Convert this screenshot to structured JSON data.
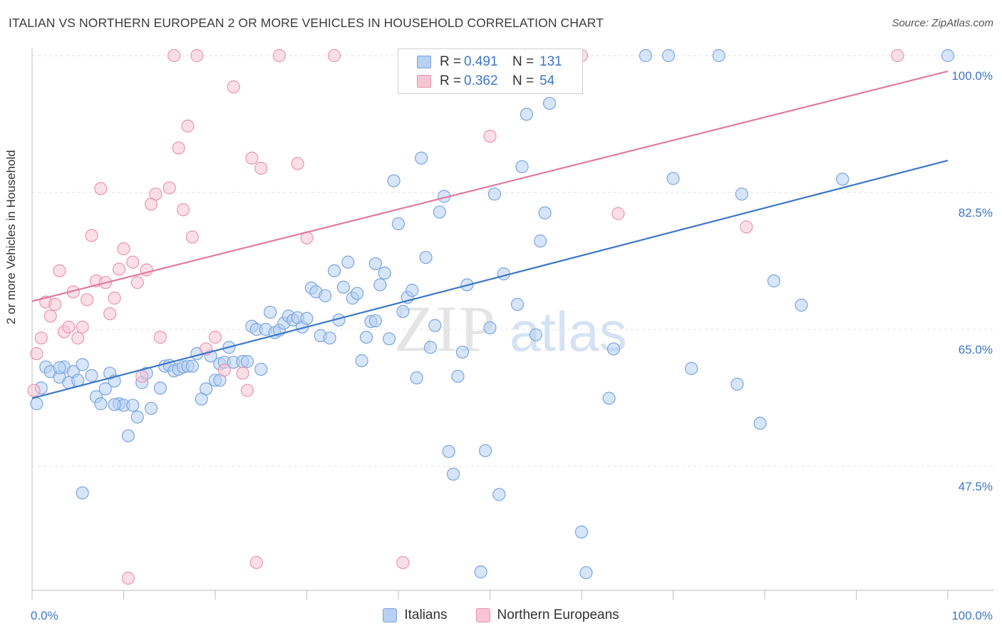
{
  "title": "ITALIAN VS NORTHERN EUROPEAN 2 OR MORE VEHICLES IN HOUSEHOLD CORRELATION CHART",
  "source": "Source: ZipAtlas.com",
  "watermark": {
    "zip": "ZIP",
    "atlas": "atlas"
  },
  "legend": {
    "rows": [
      {
        "r_label": "R =",
        "r_value": "0.491",
        "n_label": "N =",
        "n_value": "131",
        "fill": "#b7d0f3",
        "stroke": "#7aa5e0"
      },
      {
        "r_label": "R =",
        "r_value": "0.362",
        "n_label": "N =",
        "n_value": "54",
        "fill": "#f7c5d3",
        "stroke": "#e995b0"
      }
    ],
    "bottom": [
      {
        "label": "Italians",
        "fill": "#b7d0f3",
        "stroke": "#7aa5e0"
      },
      {
        "label": "Northern Europeans",
        "fill": "#f7c5d3",
        "stroke": "#e995b0"
      }
    ]
  },
  "chart_data": {
    "type": "scatter",
    "title": "ITALIAN VS NORTHERN EUROPEAN 2 OR MORE VEHICLES IN HOUSEHOLD CORRELATION CHART",
    "xlabel": "",
    "ylabel": "2 or more Vehicles in Household",
    "xlim": [
      0,
      100
    ],
    "ylim": [
      32,
      104
    ],
    "x_tick_labels": [
      "0.0%",
      "100.0%"
    ],
    "y_ticks": [
      47.5,
      65.0,
      82.5,
      100.0
    ],
    "y_tick_labels": [
      "47.5%",
      "65.0%",
      "82.5%",
      "100.0%"
    ],
    "grid": true,
    "legend_position": "top-center",
    "colors": {
      "italians": "#3d76c8",
      "northern": "#e07aa0",
      "axis_text": "#3d76c8"
    },
    "series": [
      {
        "name": "Italians",
        "color": "#3d76c8",
        "trend": [
          [
            0,
            56.2
          ],
          [
            100,
            86.6
          ]
        ],
        "points": [
          [
            0.5,
            55.5
          ],
          [
            1,
            57.5
          ],
          [
            1.5,
            60.2
          ],
          [
            2,
            59.6
          ],
          [
            3,
            58.9
          ],
          [
            3.5,
            60.2
          ],
          [
            4,
            58.2
          ],
          [
            4.5,
            59.6
          ],
          [
            5,
            58.5
          ],
          [
            5.5,
            60.5
          ],
          [
            6.5,
            59.1
          ],
          [
            7,
            56.4
          ],
          [
            7.5,
            55.5
          ],
          [
            8,
            57.4
          ],
          [
            8.5,
            59.4
          ],
          [
            9,
            58.4
          ],
          [
            9.5,
            55.5
          ],
          [
            10,
            55.3
          ],
          [
            10.5,
            51.4
          ],
          [
            11,
            55.3
          ],
          [
            11.5,
            53.8
          ],
          [
            12,
            58.2
          ],
          [
            12.5,
            59.4
          ],
          [
            13,
            54.9
          ],
          [
            14,
            57.5
          ],
          [
            14.5,
            60.3
          ],
          [
            15,
            60.4
          ],
          [
            15.5,
            59.7
          ],
          [
            16,
            59.9
          ],
          [
            16.5,
            60.2
          ],
          [
            17,
            60.3
          ],
          [
            17.5,
            60.3
          ],
          [
            18,
            61.9
          ],
          [
            18.5,
            56.1
          ],
          [
            19,
            57.4
          ],
          [
            19.5,
            61.6
          ],
          [
            20,
            58.5
          ],
          [
            20.5,
            60.6
          ],
          [
            21,
            60.8
          ],
          [
            21.5,
            62.7
          ],
          [
            22,
            60.8
          ],
          [
            23,
            60.9
          ],
          [
            23.5,
            60.9
          ],
          [
            24,
            65.4
          ],
          [
            24.5,
            65.0
          ],
          [
            25,
            59.9
          ],
          [
            25.5,
            65.0
          ],
          [
            26,
            67.2
          ],
          [
            26.5,
            64.6
          ],
          [
            27,
            64.9
          ],
          [
            27.5,
            65.8
          ],
          [
            28,
            66.7
          ],
          [
            28.5,
            66.2
          ],
          [
            29,
            66.5
          ],
          [
            29.5,
            65.3
          ],
          [
            30,
            66.4
          ],
          [
            30.5,
            70.3
          ],
          [
            31,
            69.8
          ],
          [
            31.5,
            64.2
          ],
          [
            32,
            69.3
          ],
          [
            32.5,
            63.9
          ],
          [
            33,
            72.5
          ],
          [
            33.5,
            66.2
          ],
          [
            34,
            70.4
          ],
          [
            34.5,
            73.6
          ],
          [
            35,
            69.0
          ],
          [
            35.5,
            69.6
          ],
          [
            36,
            61.0
          ],
          [
            36.5,
            64.0
          ],
          [
            37,
            66.0
          ],
          [
            37.5,
            73.4
          ],
          [
            38,
            70.7
          ],
          [
            38.5,
            72.2
          ],
          [
            39,
            63.8
          ],
          [
            39.5,
            84.0
          ],
          [
            40,
            78.5
          ],
          [
            40.5,
            67.3
          ],
          [
            41,
            69.1
          ],
          [
            41.5,
            70.0
          ],
          [
            42,
            58.8
          ],
          [
            42.5,
            86.9
          ],
          [
            43,
            74.2
          ],
          [
            43.5,
            62.7
          ],
          [
            44,
            65.5
          ],
          [
            44.5,
            80.0
          ],
          [
            45,
            82.0
          ],
          [
            45.5,
            49.4
          ],
          [
            46,
            46.5
          ],
          [
            46.5,
            59.0
          ],
          [
            47,
            62.1
          ],
          [
            47.5,
            70.7
          ],
          [
            49,
            34.0
          ],
          [
            49.5,
            49.5
          ],
          [
            50,
            65.2
          ],
          [
            50.5,
            82.3
          ],
          [
            51,
            43.9
          ],
          [
            51.5,
            72.1
          ],
          [
            53,
            68.2
          ],
          [
            53.5,
            85.8
          ],
          [
            54,
            92.5
          ],
          [
            55,
            64.3
          ],
          [
            55.5,
            76.3
          ],
          [
            56,
            79.9
          ],
          [
            56.5,
            93.9
          ],
          [
            60,
            39.1
          ],
          [
            60.5,
            33.9
          ],
          [
            63,
            56.2
          ],
          [
            63.5,
            62.5
          ],
          [
            67,
            100
          ],
          [
            69.5,
            100
          ],
          [
            72,
            60.0
          ],
          [
            70,
            84.3
          ],
          [
            75,
            100
          ],
          [
            77,
            58.0
          ],
          [
            77.5,
            82.3
          ],
          [
            79.5,
            53.0
          ],
          [
            81,
            71.2
          ],
          [
            84,
            68.1
          ],
          [
            88.5,
            84.2
          ],
          [
            100,
            100
          ],
          [
            5.5,
            44.1
          ],
          [
            3,
            60.1
          ],
          [
            9,
            55.4
          ],
          [
            20.5,
            58.5
          ],
          [
            37.5,
            66.1
          ]
        ]
      },
      {
        "name": "Northern Europeans",
        "color": "#e07aa0",
        "trend": [
          [
            0,
            68.6
          ],
          [
            100,
            98.0
          ]
        ],
        "points": [
          [
            0.2,
            57.2
          ],
          [
            0.5,
            61.9
          ],
          [
            1,
            63.9
          ],
          [
            1.5,
            68.5
          ],
          [
            2,
            66.7
          ],
          [
            2.5,
            68.2
          ],
          [
            3,
            72.5
          ],
          [
            3.5,
            64.7
          ],
          [
            4,
            65.3
          ],
          [
            4.5,
            69.8
          ],
          [
            5,
            63.9
          ],
          [
            5.5,
            65.3
          ],
          [
            6,
            68.8
          ],
          [
            6.5,
            77.0
          ],
          [
            7,
            71.2
          ],
          [
            7.5,
            83.0
          ],
          [
            8,
            71.0
          ],
          [
            8.5,
            67.0
          ],
          [
            9,
            69.0
          ],
          [
            9.5,
            72.7
          ],
          [
            10,
            75.3
          ],
          [
            10.5,
            33.2
          ],
          [
            11,
            73.6
          ],
          [
            11.5,
            71.0
          ],
          [
            12,
            59.0
          ],
          [
            12.5,
            72.6
          ],
          [
            13,
            81.0
          ],
          [
            13.5,
            82.3
          ],
          [
            14,
            64.0
          ],
          [
            15,
            83.1
          ],
          [
            15.5,
            100
          ],
          [
            16,
            88.2
          ],
          [
            16.5,
            80.3
          ],
          [
            17,
            91.0
          ],
          [
            17.5,
            76.8
          ],
          [
            18,
            100
          ],
          [
            19,
            62.5
          ],
          [
            20,
            64.0
          ],
          [
            21,
            59.8
          ],
          [
            22,
            96.0
          ],
          [
            23,
            59.4
          ],
          [
            23.5,
            57.2
          ],
          [
            24,
            86.9
          ],
          [
            24.5,
            35.2
          ],
          [
            25,
            85.6
          ],
          [
            27,
            100
          ],
          [
            29,
            86.2
          ],
          [
            30,
            76.7
          ],
          [
            33,
            100
          ],
          [
            40.5,
            35.2
          ],
          [
            50,
            89.7
          ],
          [
            60,
            100
          ],
          [
            64,
            79.8
          ],
          [
            78,
            78.1
          ],
          [
            94.5,
            100
          ]
        ]
      }
    ]
  }
}
